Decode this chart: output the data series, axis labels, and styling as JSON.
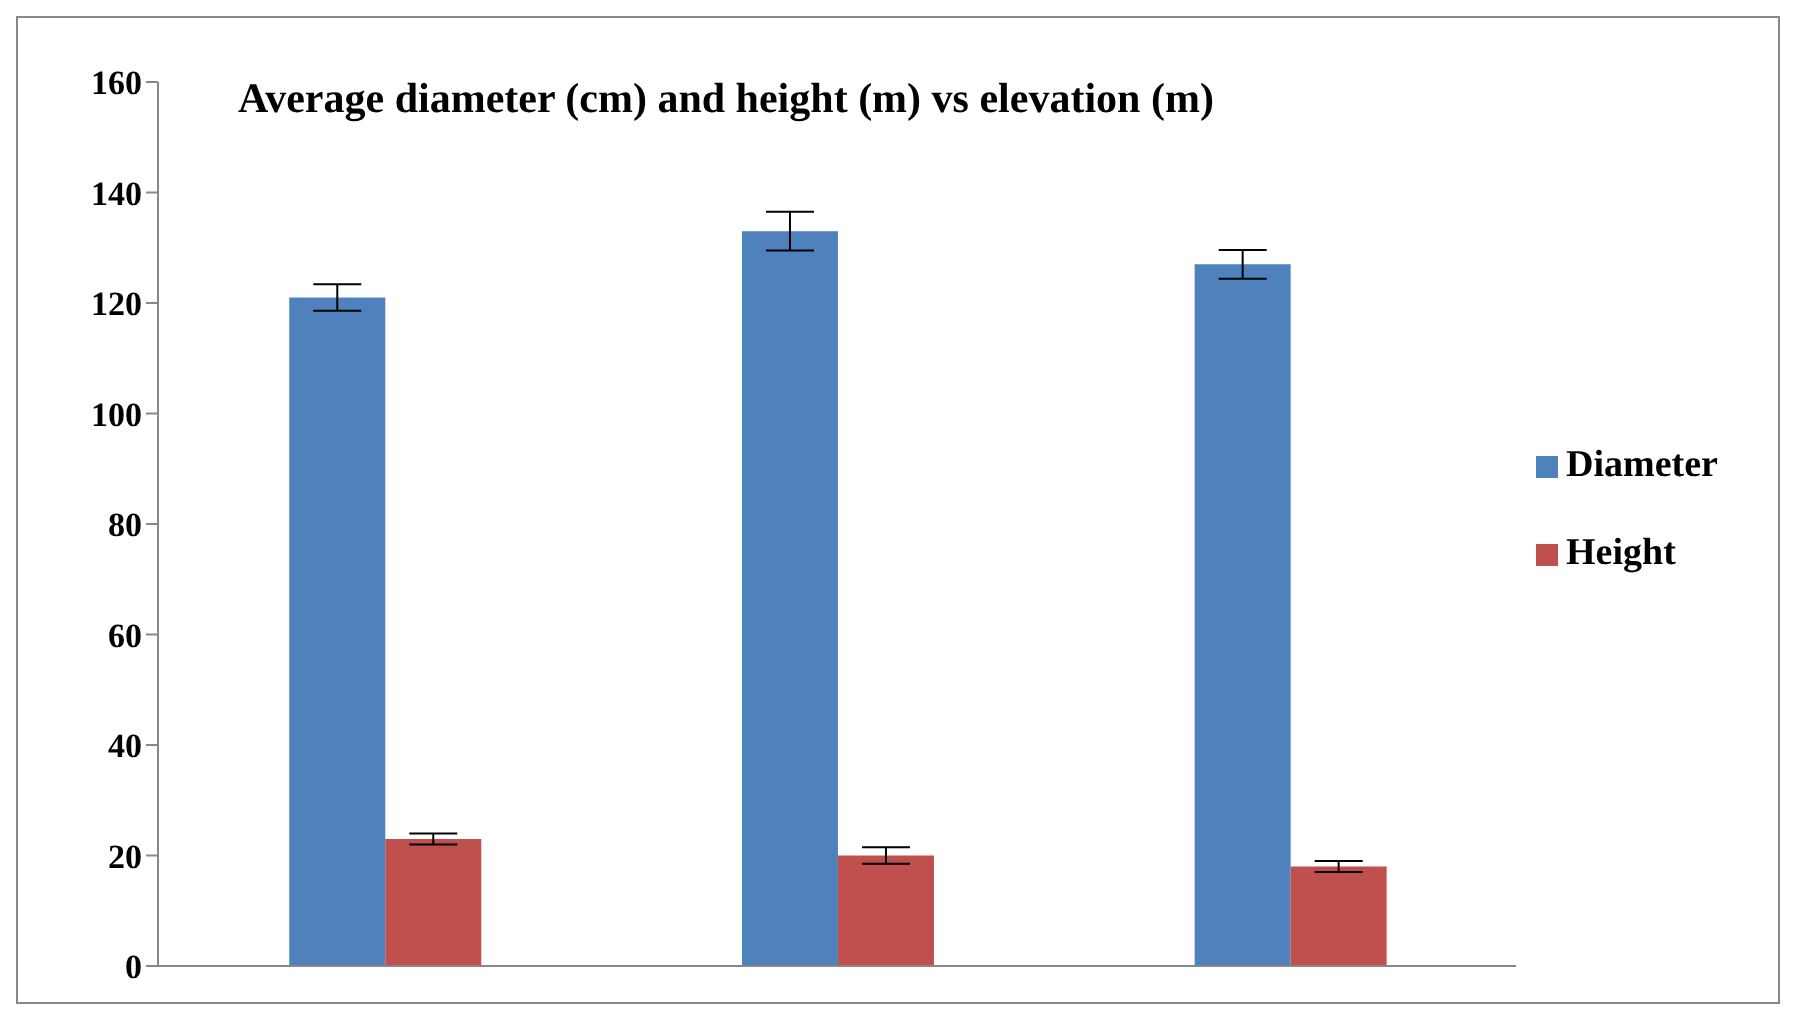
{
  "chart_data": {
    "type": "bar",
    "title": "Average diameter (cm) and height (m) vs elevation (m)",
    "categories": [
      null,
      null,
      null
    ],
    "series": [
      {
        "name": "Diameter",
        "color": "#4f81bd",
        "values": [
          121,
          133,
          127
        ],
        "errors": [
          2.4,
          3.5,
          2.6
        ]
      },
      {
        "name": "Height",
        "color": "#c0504d",
        "values": [
          23,
          20,
          18
        ],
        "errors": [
          1,
          1.5,
          1
        ]
      }
    ],
    "ylim": [
      0,
      160
    ],
    "yticks": [
      0,
      20,
      40,
      60,
      80,
      100,
      120,
      140,
      160
    ],
    "grid": false,
    "legend": "right",
    "tick_labels": "y"
  }
}
